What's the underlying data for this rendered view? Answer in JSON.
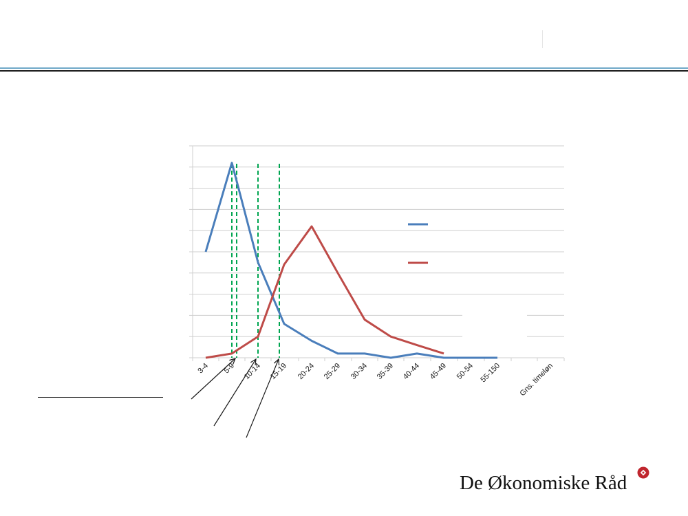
{
  "chart_data": {
    "type": "line",
    "title": "",
    "xlabel": "",
    "ylabel": "",
    "categories": [
      "3-4",
      "5-9",
      "10-14",
      "15-19",
      "20-24",
      "25-29",
      "30-34",
      "35-39",
      "40-44",
      "45-49",
      "50-54",
      "55-150",
      "",
      "Gns. timeløn"
    ],
    "series": [
      {
        "color": "#4a7ebb",
        "values": [
          5.0,
          9.2,
          4.5,
          1.6,
          0.8,
          0.2,
          0.2,
          0.0,
          0.2,
          0.0,
          0.0,
          0.0,
          null,
          null
        ]
      },
      {
        "color": "#be4b48",
        "values": [
          0.0,
          0.2,
          1.0,
          4.4,
          6.2,
          4.0,
          1.8,
          1.0,
          0.6,
          0.2,
          null,
          null,
          null,
          null
        ]
      }
    ],
    "ylim": [
      0,
      10
    ],
    "grid": true,
    "legend": "right",
    "reference_lines": {
      "color": "#00a550",
      "style": "dashed"
    }
  },
  "logo": {
    "text": "De Økonomiske Råd",
    "seal_color": "#c0262e"
  }
}
